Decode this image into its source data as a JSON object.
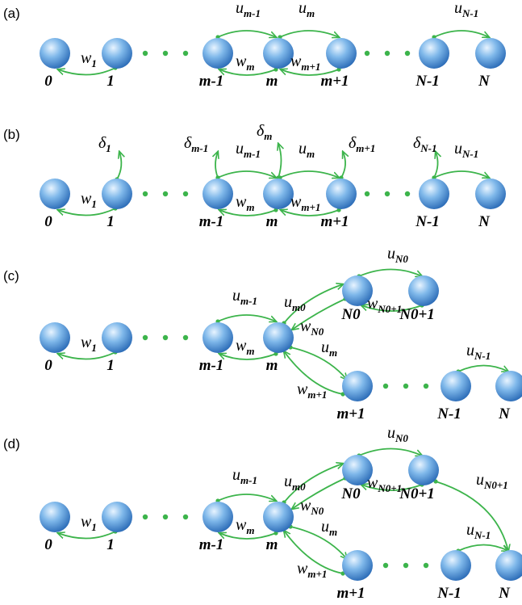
{
  "panels": [
    {
      "label": "(a)",
      "nodes": [
        "0",
        "1",
        "m-1",
        "m",
        "m+1",
        "N-1",
        "N"
      ],
      "rates": [
        {
          "base": "w",
          "sub": "1"
        },
        {
          "base": "u",
          "sub": "m-1"
        },
        {
          "base": "u",
          "sub": "m"
        },
        {
          "base": "w",
          "sub": "m"
        },
        {
          "base": "w",
          "sub": "m+1"
        },
        {
          "base": "u",
          "sub": "N-1"
        }
      ]
    },
    {
      "label": "(b)",
      "nodes": [
        "0",
        "1",
        "m-1",
        "m",
        "m+1",
        "N-1",
        "N"
      ],
      "rates": [
        {
          "base": "w",
          "sub": "1"
        },
        {
          "base": "u",
          "sub": "m-1"
        },
        {
          "base": "u",
          "sub": "m"
        },
        {
          "base": "w",
          "sub": "m"
        },
        {
          "base": "w",
          "sub": "m+1"
        },
        {
          "base": "u",
          "sub": "N-1"
        }
      ],
      "deltas": [
        {
          "base": "δ",
          "sub": "1"
        },
        {
          "base": "δ",
          "sub": "m-1"
        },
        {
          "base": "δ",
          "sub": "m"
        },
        {
          "base": "δ",
          "sub": "m+1"
        },
        {
          "base": "δ",
          "sub": "N-1"
        }
      ]
    },
    {
      "label": "(c)",
      "nodes": [
        "0",
        "1",
        "m-1",
        "m",
        "N0",
        "N0+1",
        "m+1",
        "N-1",
        "N"
      ],
      "rates": [
        {
          "base": "w",
          "sub": "1"
        },
        {
          "base": "u",
          "sub": "m-1"
        },
        {
          "base": "w",
          "sub": "m"
        },
        {
          "base": "u",
          "sub": "m0"
        },
        {
          "base": "w",
          "sub": "N0"
        },
        {
          "base": "u",
          "sub": "N0"
        },
        {
          "base": "w",
          "sub": "N0+1"
        },
        {
          "base": "u",
          "sub": "m"
        },
        {
          "base": "w",
          "sub": "m+1"
        },
        {
          "base": "u",
          "sub": "N-1"
        }
      ]
    },
    {
      "label": "(d)",
      "nodes": [
        "0",
        "1",
        "m-1",
        "m",
        "N0",
        "N0+1",
        "m+1",
        "N-1",
        "N"
      ],
      "rates": [
        {
          "base": "w",
          "sub": "1"
        },
        {
          "base": "u",
          "sub": "m-1"
        },
        {
          "base": "w",
          "sub": "m"
        },
        {
          "base": "u",
          "sub": "m0"
        },
        {
          "base": "w",
          "sub": "N0"
        },
        {
          "base": "u",
          "sub": "N0"
        },
        {
          "base": "w",
          "sub": "N0+1"
        },
        {
          "base": "u",
          "sub": "m"
        },
        {
          "base": "w",
          "sub": "m+1"
        },
        {
          "base": "u",
          "sub": "N-1"
        },
        {
          "base": "u",
          "sub": "N0+1"
        }
      ]
    }
  ]
}
